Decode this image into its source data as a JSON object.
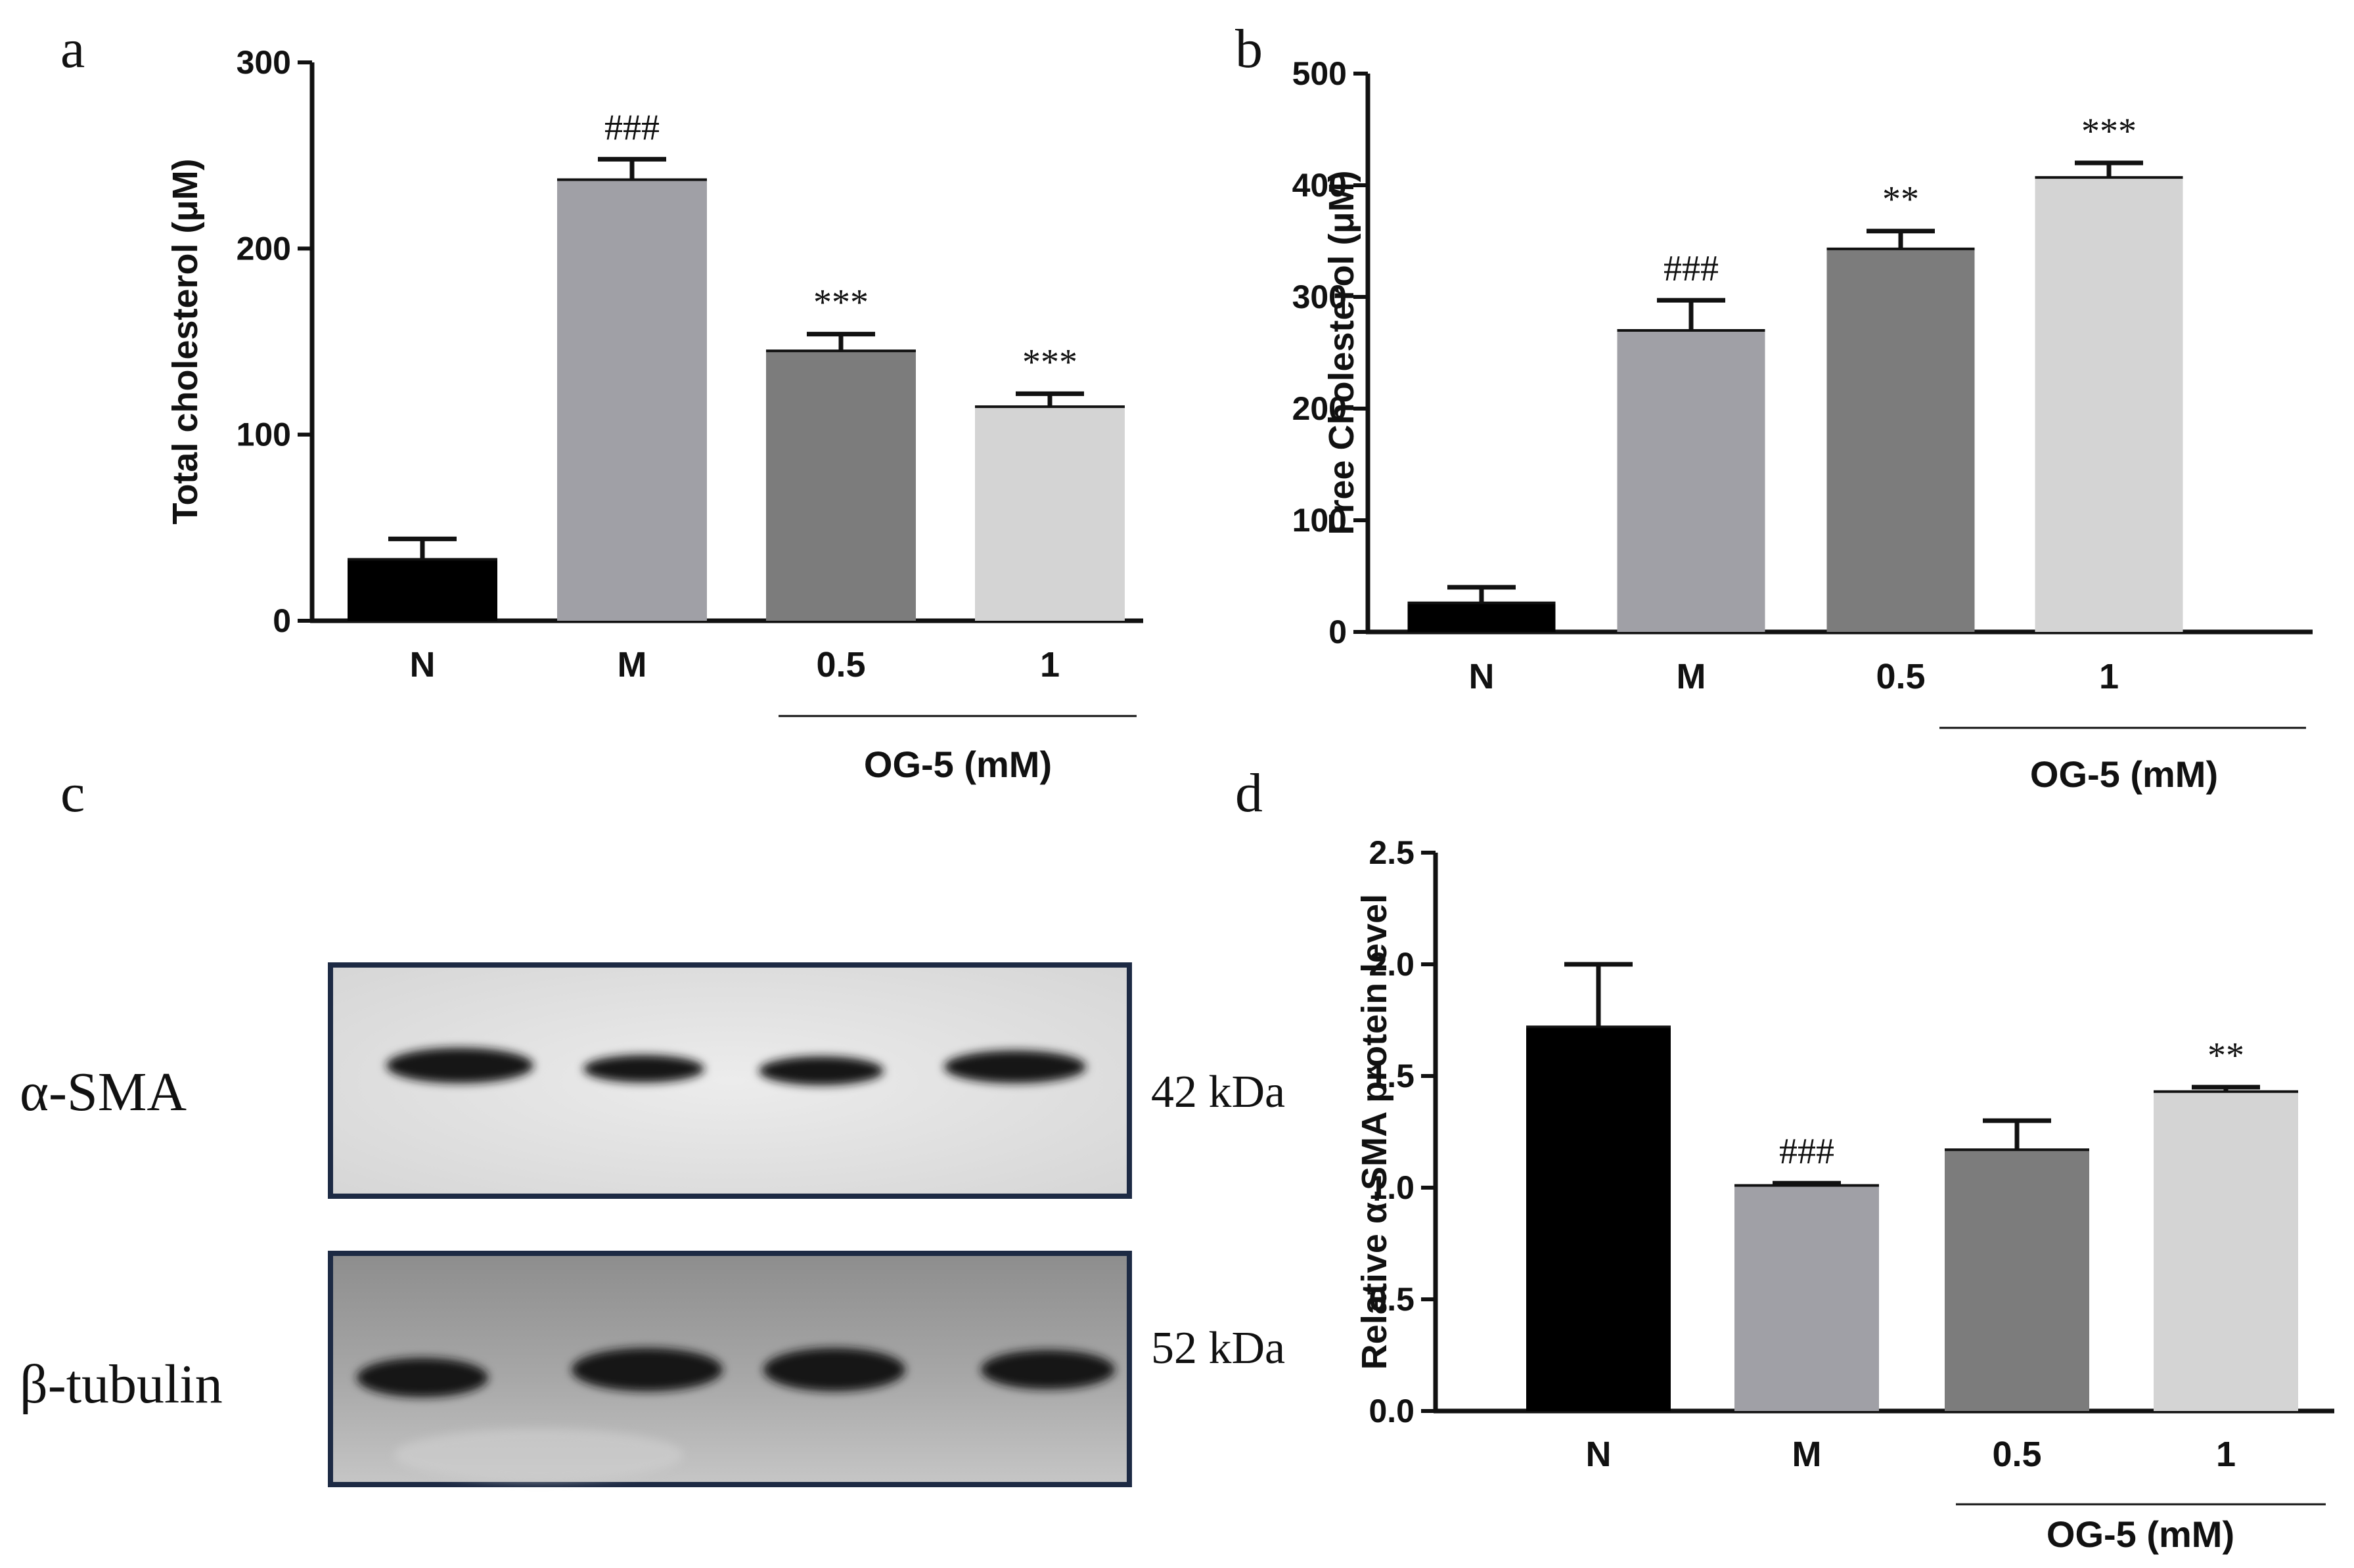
{
  "panels": {
    "a": "a",
    "b": "b",
    "c": "c",
    "d": "d"
  },
  "chart_data": [
    {
      "panel": "a",
      "type": "bar",
      "categories": [
        "N",
        "M",
        "0.5",
        "1"
      ],
      "values": [
        33,
        237,
        145,
        115
      ],
      "errors": [
        11,
        11,
        9,
        7
      ],
      "significance": [
        "",
        "###",
        "***",
        "***"
      ],
      "ylabel": "Total cholesterol (μM)",
      "ylim": [
        0,
        300
      ],
      "yticks": [
        "0",
        "100",
        "200",
        "300"
      ],
      "group_label": "OG-5 (mM)",
      "colors": [
        "#000000",
        "#a0a0a6",
        "#7c7c7c",
        "#d4d4d4"
      ]
    },
    {
      "panel": "b",
      "type": "bar",
      "categories": [
        "N",
        "M",
        "0.5",
        "1"
      ],
      "values": [
        26,
        270,
        343,
        407
      ],
      "errors": [
        14,
        27,
        16,
        13
      ],
      "significance": [
        "",
        "###",
        "**",
        "***"
      ],
      "ylabel": "Free Cholesterol (μM)",
      "ylim": [
        0,
        500
      ],
      "yticks": [
        "0",
        "100",
        "200",
        "300",
        "400",
        "500"
      ],
      "group_label": "OG-5 (mM)",
      "colors": [
        "#000000",
        "#a0a0a6",
        "#7c7c7c",
        "#d4d4d4"
      ]
    },
    {
      "panel": "d",
      "type": "bar",
      "categories": [
        "N",
        "M",
        "0.5",
        "1"
      ],
      "values": [
        1.72,
        1.01,
        1.17,
        1.43
      ],
      "errors": [
        0.28,
        0.01,
        0.13,
        0.02
      ],
      "significance": [
        "",
        "###",
        "",
        "**"
      ],
      "ylabel": "Relative α-SMA protein level",
      "ylim": [
        0,
        2.5
      ],
      "yticks": [
        "0.0",
        "0.5",
        "1.0",
        "1.5",
        "2.0",
        "2.5"
      ],
      "group_label": "OG-5 (mM)",
      "colors": [
        "#000000",
        "#a0a0a6",
        "#7c7c7c",
        "#d4d4d4"
      ]
    }
  ],
  "blot": {
    "rows": [
      {
        "label": "α-SMA",
        "size": "42 kDa"
      },
      {
        "label": "β-tubulin",
        "size": "52 kDa"
      }
    ]
  }
}
